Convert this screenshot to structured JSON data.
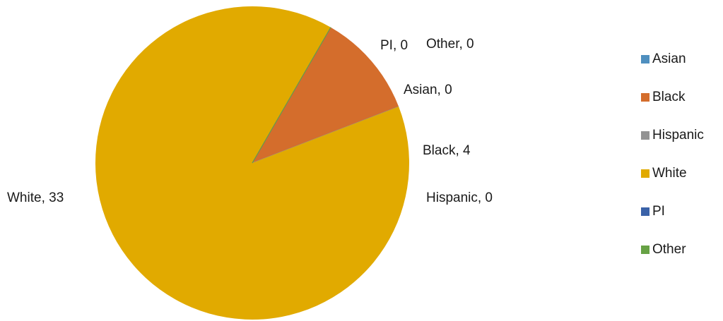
{
  "chart_data": {
    "type": "pie",
    "title": "",
    "categories": [
      "Asian",
      "Black",
      "Hispanic",
      "White",
      "PI",
      "Other"
    ],
    "values": [
      0,
      4,
      0,
      33,
      0,
      0
    ],
    "colors": [
      "#4f8fbf",
      "#d46d2c",
      "#939393",
      "#e1aa00",
      "#3a62a8",
      "#67a245"
    ],
    "data_labels": [
      "Asian, 0",
      "Black, 4",
      "Hispanic, 0",
      "White, 33",
      "PI, 0",
      "Other, 0"
    ],
    "start_angle_deg": 60,
    "direction": "clockwise",
    "legend": {
      "position": "right",
      "entries": [
        "Asian",
        "Black",
        "Hispanic",
        "White",
        "PI",
        "Other"
      ]
    }
  }
}
